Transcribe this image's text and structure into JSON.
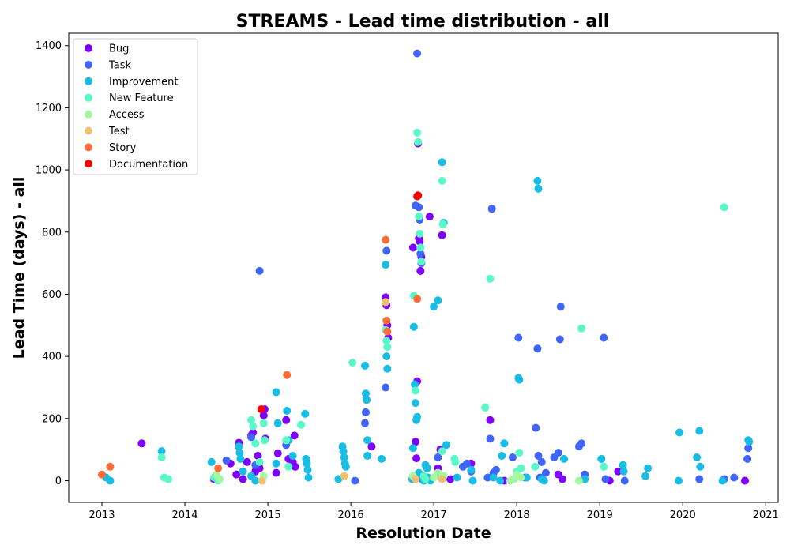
{
  "chart_data": {
    "type": "scatter",
    "title": "STREAMS - Lead time distribution - all",
    "xlabel": "Resolution Date",
    "ylabel": "Lead Time (days) - all",
    "xlim": [
      2012.6,
      2021.15
    ],
    "ylim": [
      -70,
      1440
    ],
    "x_ticks": [
      "2013",
      "2014",
      "2015",
      "2016",
      "2017",
      "2018",
      "2019",
      "2020",
      "2021"
    ],
    "y_ticks": [
      0,
      200,
      400,
      600,
      800,
      1000,
      1200,
      1400
    ],
    "grid": false,
    "legend": "upper-left",
    "series": [
      {
        "name": "Bug",
        "color": "#8000ff",
        "points": [
          [
            2013.48,
            120
          ],
          [
            2014.35,
            5
          ],
          [
            2014.55,
            55
          ],
          [
            2014.62,
            20
          ],
          [
            2014.65,
            122
          ],
          [
            2014.7,
            5
          ],
          [
            2014.75,
            60
          ],
          [
            2014.8,
            145
          ],
          [
            2014.82,
            155
          ],
          [
            2014.85,
            30
          ],
          [
            2014.88,
            80
          ],
          [
            2014.9,
            40
          ],
          [
            2014.95,
            210
          ],
          [
            2014.96,
            230
          ],
          [
            2014.97,
            135
          ],
          [
            2015.1,
            25
          ],
          [
            2015.12,
            88
          ],
          [
            2015.22,
            195
          ],
          [
            2015.25,
            70
          ],
          [
            2015.3,
            60
          ],
          [
            2015.32,
            145
          ],
          [
            2015.33,
            45
          ],
          [
            2016.25,
            110
          ],
          [
            2016.42,
            590
          ],
          [
            2016.43,
            565
          ],
          [
            2016.44,
            500
          ],
          [
            2016.45,
            460
          ],
          [
            2016.75,
            750
          ],
          [
            2016.78,
            125
          ],
          [
            2016.79,
            72
          ],
          [
            2016.8,
            320
          ],
          [
            2016.81,
            1085
          ],
          [
            2016.82,
            780
          ],
          [
            2016.83,
            770
          ],
          [
            2016.84,
            675
          ],
          [
            2016.85,
            720
          ],
          [
            2016.86,
            5
          ],
          [
            2016.95,
            850
          ],
          [
            2017.05,
            40
          ],
          [
            2017.08,
            100
          ],
          [
            2017.1,
            790
          ],
          [
            2017.12,
            10
          ],
          [
            2017.2,
            5
          ],
          [
            2017.45,
            55
          ],
          [
            2017.68,
            195
          ],
          [
            2017.85,
            0
          ],
          [
            2018.5,
            20
          ],
          [
            2018.55,
            5
          ],
          [
            2019.12,
            0
          ],
          [
            2019.22,
            30
          ],
          [
            2020.75,
            0
          ]
        ]
      },
      {
        "name": "Task",
        "color": "#3f65fb",
        "points": [
          [
            2014.5,
            65
          ],
          [
            2014.8,
            140
          ],
          [
            2014.85,
            50
          ],
          [
            2014.9,
            675
          ],
          [
            2015.22,
            115
          ],
          [
            2016.05,
            0
          ],
          [
            2016.17,
            185
          ],
          [
            2016.18,
            220
          ],
          [
            2016.42,
            300
          ],
          [
            2016.43,
            740
          ],
          [
            2016.78,
            885
          ],
          [
            2016.8,
            1375
          ],
          [
            2016.82,
            880
          ],
          [
            2016.83,
            840
          ],
          [
            2016.84,
            730
          ],
          [
            2016.85,
            700
          ],
          [
            2017.05,
            75
          ],
          [
            2017.35,
            45
          ],
          [
            2017.4,
            55
          ],
          [
            2017.45,
            30
          ],
          [
            2017.65,
            10
          ],
          [
            2017.68,
            135
          ],
          [
            2017.7,
            875
          ],
          [
            2017.72,
            25
          ],
          [
            2017.75,
            35
          ],
          [
            2017.95,
            75
          ],
          [
            2018.02,
            460
          ],
          [
            2018.1,
            10
          ],
          [
            2018.23,
            170
          ],
          [
            2018.25,
            425
          ],
          [
            2018.26,
            80
          ],
          [
            2018.28,
            10
          ],
          [
            2018.3,
            60
          ],
          [
            2018.35,
            25
          ],
          [
            2018.45,
            75
          ],
          [
            2018.5,
            90
          ],
          [
            2018.52,
            455
          ],
          [
            2018.53,
            560
          ],
          [
            2018.75,
            110
          ],
          [
            2018.78,
            120
          ],
          [
            2018.82,
            20
          ],
          [
            2019.05,
            460
          ],
          [
            2019.07,
            5
          ],
          [
            2019.3,
            0
          ],
          [
            2020.2,
            5
          ],
          [
            2020.5,
            5
          ],
          [
            2020.62,
            10
          ],
          [
            2020.78,
            70
          ],
          [
            2020.79,
            105
          ]
        ]
      },
      {
        "name": "Improvement",
        "color": "#18bde5",
        "points": [
          [
            2013.05,
            10
          ],
          [
            2013.1,
            0
          ],
          [
            2013.72,
            95
          ],
          [
            2014.32,
            60
          ],
          [
            2014.65,
            110
          ],
          [
            2014.66,
            90
          ],
          [
            2014.67,
            70
          ],
          [
            2014.7,
            30
          ],
          [
            2014.8,
            15
          ],
          [
            2014.85,
            0
          ],
          [
            2015.1,
            285
          ],
          [
            2015.12,
            185
          ],
          [
            2015.1,
            55
          ],
          [
            2015.23,
            225
          ],
          [
            2015.25,
            130
          ],
          [
            2015.3,
            80
          ],
          [
            2015.45,
            215
          ],
          [
            2015.46,
            70
          ],
          [
            2015.47,
            55
          ],
          [
            2015.48,
            35
          ],
          [
            2015.49,
            10
          ],
          [
            2015.85,
            5
          ],
          [
            2015.9,
            110
          ],
          [
            2015.91,
            95
          ],
          [
            2015.92,
            75
          ],
          [
            2015.93,
            55
          ],
          [
            2015.94,
            45
          ],
          [
            2016.17,
            370
          ],
          [
            2016.18,
            280
          ],
          [
            2016.19,
            260
          ],
          [
            2016.2,
            130
          ],
          [
            2016.2,
            80
          ],
          [
            2016.37,
            70
          ],
          [
            2016.42,
            695
          ],
          [
            2016.43,
            400
          ],
          [
            2016.44,
            360
          ],
          [
            2016.74,
            5
          ],
          [
            2016.75,
            105
          ],
          [
            2016.76,
            495
          ],
          [
            2016.77,
            310
          ],
          [
            2016.78,
            250
          ],
          [
            2016.79,
            195
          ],
          [
            2016.8,
            205
          ],
          [
            2016.82,
            25
          ],
          [
            2016.85,
            10
          ],
          [
            2016.88,
            0
          ],
          [
            2016.9,
            50
          ],
          [
            2016.92,
            40
          ],
          [
            2016.93,
            10
          ],
          [
            2016.96,
            0
          ],
          [
            2017.0,
            560
          ],
          [
            2017.05,
            580
          ],
          [
            2017.1,
            1025
          ],
          [
            2017.12,
            830
          ],
          [
            2017.15,
            115
          ],
          [
            2017.28,
            10
          ],
          [
            2017.45,
            35
          ],
          [
            2017.47,
            0
          ],
          [
            2017.72,
            10
          ],
          [
            2017.8,
            0
          ],
          [
            2017.82,
            80
          ],
          [
            2017.85,
            120
          ],
          [
            2018.02,
            330
          ],
          [
            2018.03,
            325
          ],
          [
            2018.12,
            10
          ],
          [
            2018.25,
            965
          ],
          [
            2018.26,
            940
          ],
          [
            2018.3,
            5
          ],
          [
            2018.33,
            0
          ],
          [
            2018.57,
            70
          ],
          [
            2018.82,
            5
          ],
          [
            2019.02,
            70
          ],
          [
            2019.28,
            50
          ],
          [
            2019.29,
            30
          ],
          [
            2019.55,
            15
          ],
          [
            2019.58,
            40
          ],
          [
            2019.95,
            0
          ],
          [
            2019.96,
            155
          ],
          [
            2020.17,
            75
          ],
          [
            2020.2,
            160
          ],
          [
            2020.21,
            45
          ],
          [
            2020.48,
            0
          ],
          [
            2020.79,
            130
          ],
          [
            2020.8,
            125
          ]
        ]
      },
      {
        "name": "New Feature",
        "color": "#5af8c8",
        "points": [
          [
            2013.72,
            75
          ],
          [
            2013.75,
            10
          ],
          [
            2013.8,
            5
          ],
          [
            2014.35,
            10
          ],
          [
            2014.4,
            0
          ],
          [
            2014.8,
            195
          ],
          [
            2014.82,
            175
          ],
          [
            2014.85,
            120
          ],
          [
            2014.9,
            60
          ],
          [
            2014.95,
            185
          ],
          [
            2014.96,
            130
          ],
          [
            2015.22,
            130
          ],
          [
            2015.25,
            45
          ],
          [
            2015.4,
            180
          ],
          [
            2016.02,
            380
          ],
          [
            2016.42,
            485
          ],
          [
            2016.43,
            450
          ],
          [
            2016.44,
            430
          ],
          [
            2016.76,
            595
          ],
          [
            2016.78,
            290
          ],
          [
            2016.8,
            1120
          ],
          [
            2016.81,
            1090
          ],
          [
            2016.82,
            850
          ],
          [
            2016.83,
            795
          ],
          [
            2016.84,
            750
          ],
          [
            2016.85,
            705
          ],
          [
            2016.88,
            15
          ],
          [
            2016.9,
            5
          ],
          [
            2017.1,
            965
          ],
          [
            2017.11,
            825
          ],
          [
            2017.1,
            95
          ],
          [
            2017.25,
            70
          ],
          [
            2017.26,
            60
          ],
          [
            2017.62,
            235
          ],
          [
            2017.68,
            650
          ],
          [
            2018.0,
            30
          ],
          [
            2018.03,
            90
          ],
          [
            2018.05,
            40
          ],
          [
            2018.22,
            45
          ],
          [
            2018.78,
            490
          ],
          [
            2019.05,
            45
          ],
          [
            2020.5,
            880
          ]
        ]
      },
      {
        "name": "Access",
        "color": "#a4f89f",
        "points": [
          [
            2014.38,
            20
          ],
          [
            2014.42,
            5
          ],
          [
            2014.95,
            15
          ],
          [
            2016.75,
            15
          ],
          [
            2017.0,
            10
          ],
          [
            2017.05,
            25
          ],
          [
            2017.1,
            10
          ],
          [
            2017.12,
            15
          ],
          [
            2017.92,
            0
          ],
          [
            2017.97,
            5
          ],
          [
            2018.0,
            20
          ],
          [
            2018.05,
            10
          ],
          [
            2018.75,
            0
          ]
        ]
      },
      {
        "name": "Test",
        "color": "#edc16f",
        "points": [
          [
            2014.93,
            0
          ],
          [
            2015.92,
            15
          ],
          [
            2016.42,
            575
          ],
          [
            2016.78,
            5
          ],
          [
            2017.1,
            5
          ]
        ]
      },
      {
        "name": "Story",
        "color": "#fe6d39",
        "points": [
          [
            2013.0,
            20
          ],
          [
            2013.1,
            45
          ],
          [
            2014.4,
            40
          ],
          [
            2015.23,
            340
          ],
          [
            2016.42,
            775
          ],
          [
            2016.43,
            515
          ],
          [
            2016.44,
            480
          ],
          [
            2016.8,
            585
          ]
        ]
      },
      {
        "name": "Documentation",
        "color": "#ff0000",
        "points": [
          [
            2014.92,
            230
          ],
          [
            2016.8,
            915
          ],
          [
            2016.81,
            918
          ]
        ]
      }
    ]
  }
}
